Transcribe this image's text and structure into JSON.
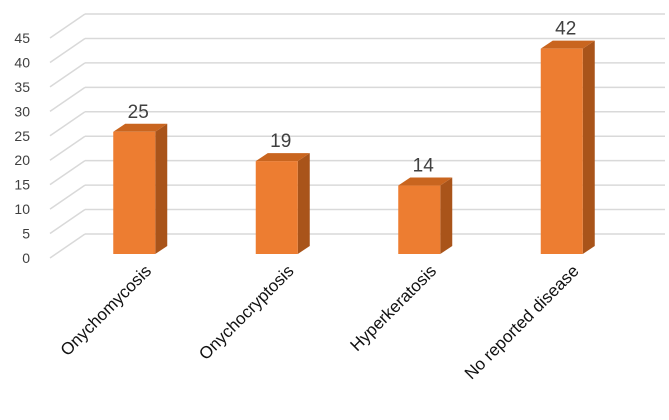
{
  "chart_data": {
    "type": "bar",
    "categories": [
      "Onychomycosis",
      "Onychocryptosis",
      "Hyperkeratosis",
      "No reported disease"
    ],
    "values": [
      25,
      19,
      14,
      42
    ],
    "data_labels": [
      "25",
      "19",
      "14",
      "42"
    ],
    "title": "",
    "xlabel": "",
    "ylabel": "",
    "ylim": [
      0,
      45
    ],
    "yticks": [
      "0",
      "5",
      "10",
      "15",
      "20",
      "25",
      "30",
      "35",
      "40",
      "45"
    ],
    "grid": true,
    "legend": "none",
    "style": "3d-column",
    "colors": {
      "bar_front": "#ED7D31",
      "bar_side": "#A9541A",
      "bar_top": "#C9651F",
      "grid": "#D9D9D9"
    }
  }
}
